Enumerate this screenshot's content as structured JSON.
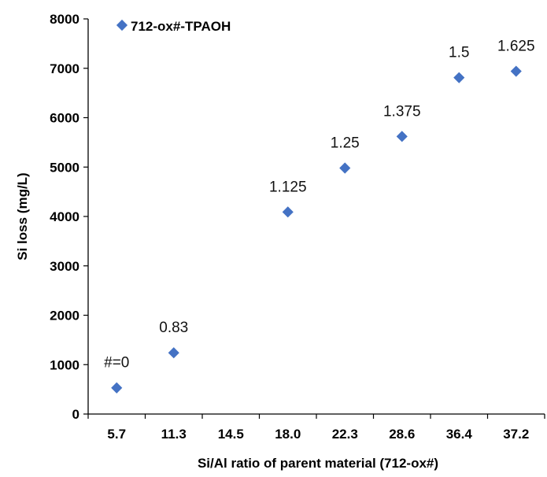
{
  "chart_data": {
    "type": "scatter",
    "title": "",
    "xlabel": "Si/Al ratio of parent material (712-ox#)",
    "ylabel": "Si loss (mg/L)",
    "x_categories": [
      "5.7",
      "11.3",
      "14.5",
      "18.0",
      "22.3",
      "28.6",
      "36.4",
      "37.2"
    ],
    "ylim": [
      0,
      8000
    ],
    "yticks": [
      "0",
      "1000",
      "2000",
      "3000",
      "4000",
      "5000",
      "6000",
      "7000",
      "8000"
    ],
    "grid": false,
    "legend_position": "top-left",
    "marker_color": "#4472C4",
    "series": [
      {
        "name": "712-ox#-TPAOH",
        "points": [
          {
            "x": 5.7,
            "y": 530,
            "label": "#=0"
          },
          {
            "x": 11.3,
            "y": 1240,
            "label": "0.83"
          },
          {
            "x": 18.0,
            "y": 4090,
            "label": "1.125"
          },
          {
            "x": 22.3,
            "y": 4980,
            "label": "1.25"
          },
          {
            "x": 28.6,
            "y": 5620,
            "label": "1.375"
          },
          {
            "x": 36.4,
            "y": 6810,
            "label": "1.5"
          },
          {
            "x": 37.2,
            "y": 6940,
            "label": "1.625"
          }
        ]
      }
    ]
  }
}
